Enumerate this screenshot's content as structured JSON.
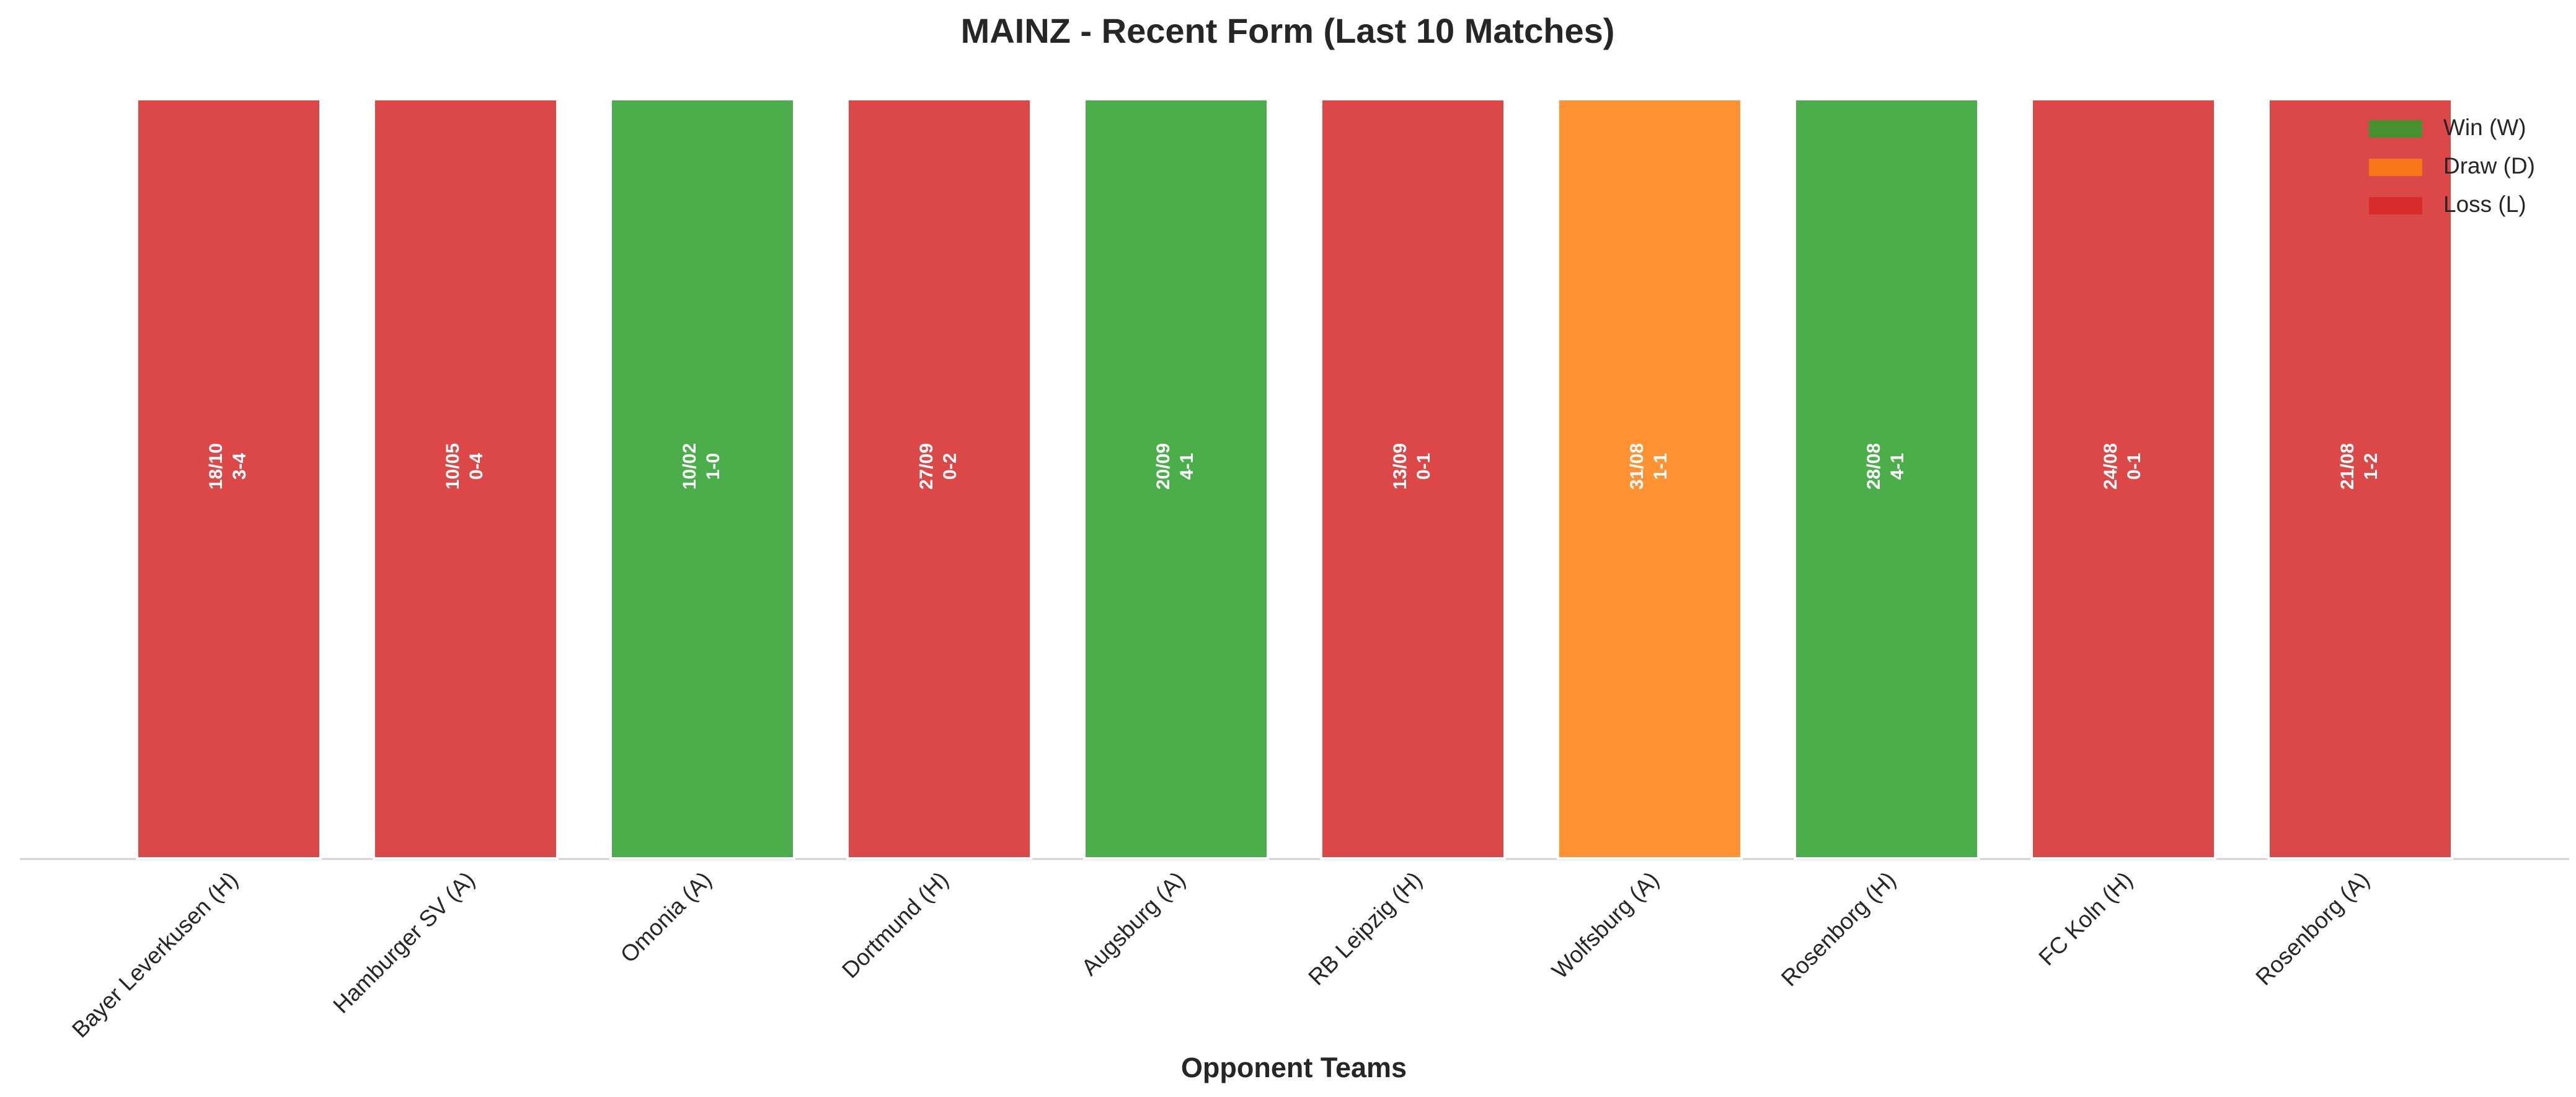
{
  "chart_data": {
    "type": "bar",
    "title": "MAINZ - Recent Form (Last 10 Matches)",
    "x_label": "Opponent Teams",
    "categories": [
      "Bayer Leverkusen (H)",
      "Hamburger SV (A)",
      "Omonia (A)",
      "Dortmund (H)",
      "Augsburg (A)",
      "RB Leipzig (H)",
      "Wolfsburg (A)",
      "Rosenborg (H)",
      "FC Koln (H)",
      "Rosenborg (A)"
    ],
    "values": [
      1,
      1,
      1,
      1,
      1,
      1,
      1,
      1,
      1,
      1
    ],
    "dates": [
      "18/10",
      "10/05",
      "10/02",
      "27/09",
      "20/09",
      "13/09",
      "31/08",
      "28/08",
      "24/08",
      "21/08"
    ],
    "scores": [
      "3-4",
      "0-4",
      "1-0",
      "0-2",
      "4-1",
      "0-1",
      "1-1",
      "4-1",
      "0-1",
      "1-2"
    ],
    "colors": [
      "#d62728",
      "#d62728",
      "#2ca02c",
      "#d62728",
      "#2ca02c",
      "#d62728",
      "#ff7f0e",
      "#2ca02c",
      "#d62728",
      "#d62728"
    ],
    "ylim": [
      0,
      1
    ],
    "legend": [
      {
        "name": "Win (W)",
        "color": "#2ca02c"
      },
      {
        "name": "Draw (D)",
        "color": "#ff7f0e"
      },
      {
        "name": "Loss (L)",
        "color": "#d62728"
      }
    ],
    "legend_position": "upper right"
  }
}
